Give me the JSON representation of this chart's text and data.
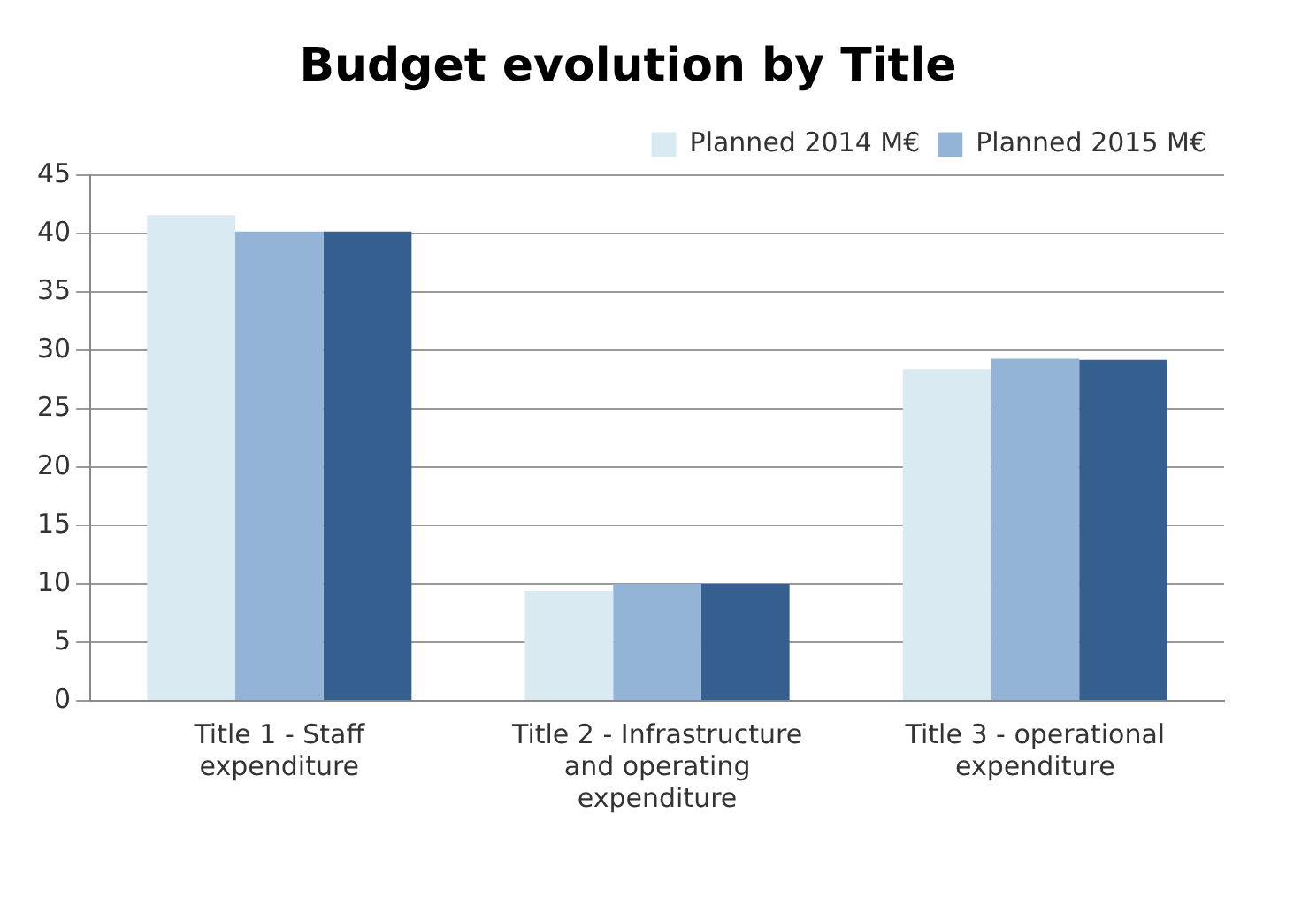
{
  "chart_data": {
    "type": "bar",
    "title": "Budget evolution by Title",
    "categories": [
      "Title 1 - Staff expenditure",
      "Title 2 - Infrastructure and operating expenditure",
      "Title 3 - operational expenditure"
    ],
    "series": [
      {
        "name": "Planned 2014 M€",
        "color": "#d9eaf2",
        "values": [
          41.6,
          9.4,
          28.4
        ]
      },
      {
        "name": "Planned 2015 M€",
        "color": "#93b3d7",
        "values": [
          40.2,
          10,
          29.3
        ]
      },
      {
        "color": "#355f8f",
        "values": [
          40.2,
          10,
          29.2
        ]
      }
    ],
    "ylim": [
      0,
      45
    ],
    "yticks": [
      0,
      5,
      10,
      15,
      20,
      25,
      30,
      35,
      40,
      45
    ],
    "grid": "y",
    "legend": "top right"
  }
}
